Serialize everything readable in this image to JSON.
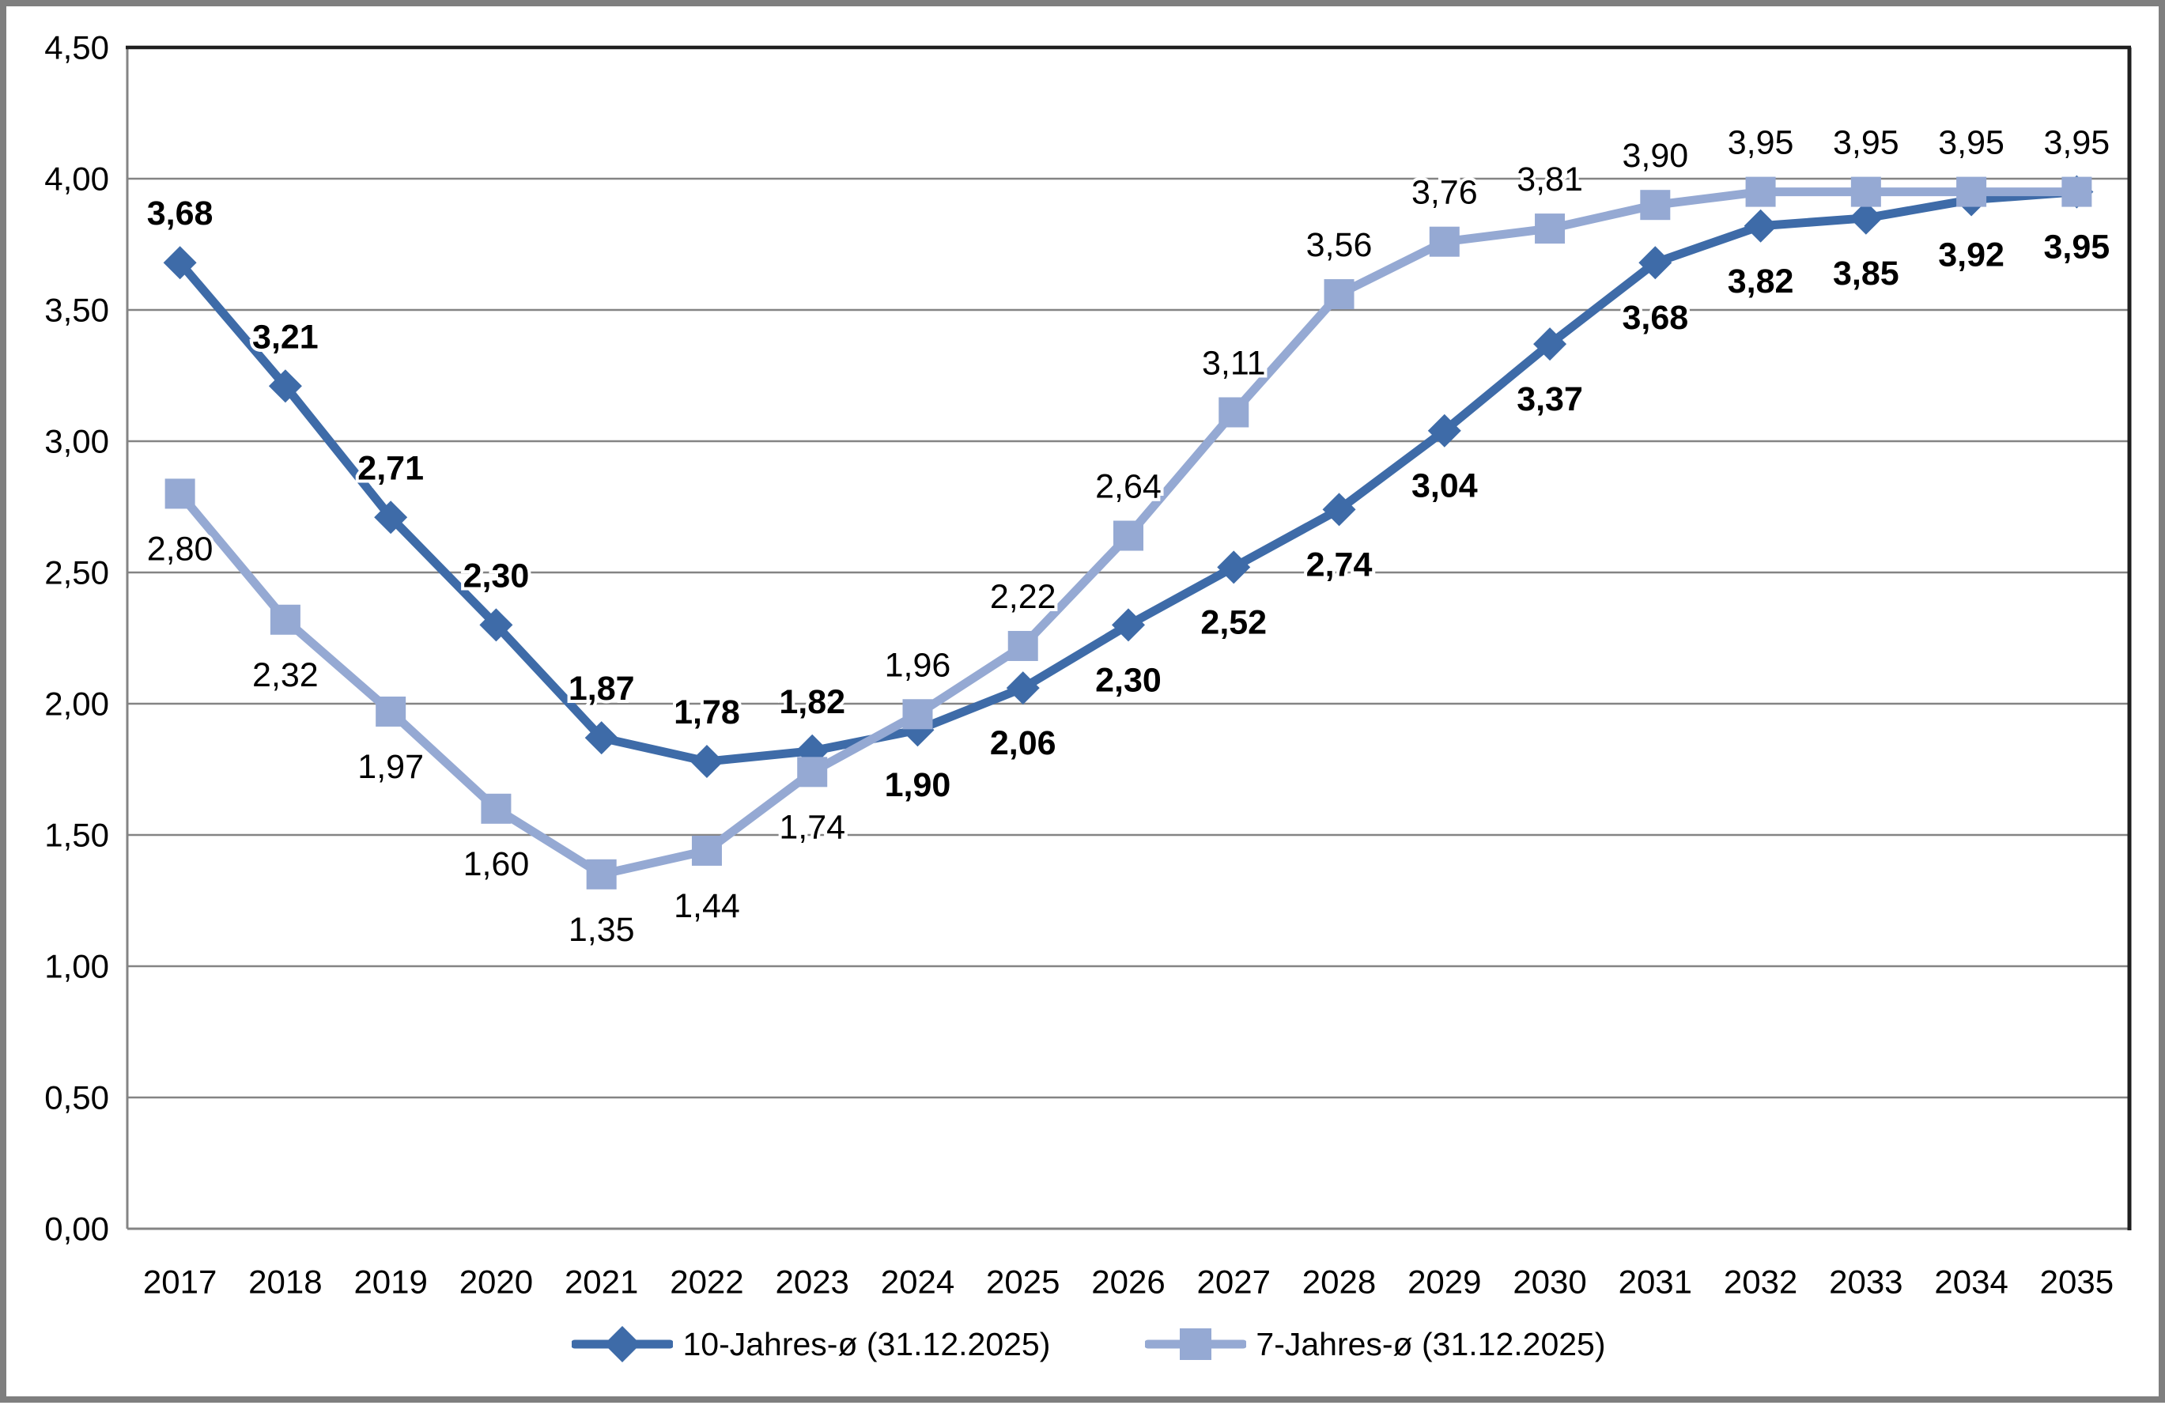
{
  "chart_data": {
    "type": "line",
    "categories": [
      "2017",
      "2018",
      "2019",
      "2020",
      "2021",
      "2022",
      "2023",
      "2024",
      "2025",
      "2026",
      "2027",
      "2028",
      "2029",
      "2030",
      "2031",
      "2032",
      "2033",
      "2034",
      "2035"
    ],
    "series": [
      {
        "name": "10-Jahres-ø (31.12.2025)",
        "color": "#3E6BA8",
        "marker": "diamond",
        "label_bold": true,
        "values": [
          3.68,
          3.21,
          2.71,
          2.3,
          1.87,
          1.78,
          1.82,
          1.9,
          2.06,
          2.3,
          2.52,
          2.74,
          3.04,
          3.37,
          3.68,
          3.82,
          3.85,
          3.92,
          3.95
        ],
        "label_sides": [
          "above",
          "above",
          "above",
          "above",
          "above",
          "above",
          "above",
          "below",
          "below",
          "below",
          "below",
          "below",
          "below",
          "below",
          "below",
          "below",
          "below",
          "below",
          "below"
        ]
      },
      {
        "name": "7-Jahres-ø (31.12.2025)",
        "color": "#95A9D3",
        "marker": "square",
        "label_bold": false,
        "values": [
          2.8,
          2.32,
          1.97,
          1.6,
          1.35,
          1.44,
          1.74,
          1.96,
          2.22,
          2.64,
          3.11,
          3.56,
          3.76,
          3.81,
          3.9,
          3.95,
          3.95,
          3.95,
          3.95
        ],
        "label_sides": [
          "below",
          "below",
          "below",
          "below",
          "below",
          "below",
          "below",
          "above",
          "above",
          "above",
          "above",
          "above",
          "above",
          "above",
          "above",
          "above",
          "above",
          "above",
          "above"
        ]
      }
    ],
    "ylim": [
      0,
      4.5
    ],
    "ytick_step": 0.5,
    "decimal_separator": ",",
    "grid": true,
    "legend_position": "bottom"
  },
  "colors": {
    "gridline": "#848484",
    "axis_line_gray": "#848484",
    "axis_line_dark": "#1f1f1f",
    "outer_frame": "#7f7f7f",
    "label_text": "#000000",
    "background": "#ffffff"
  }
}
